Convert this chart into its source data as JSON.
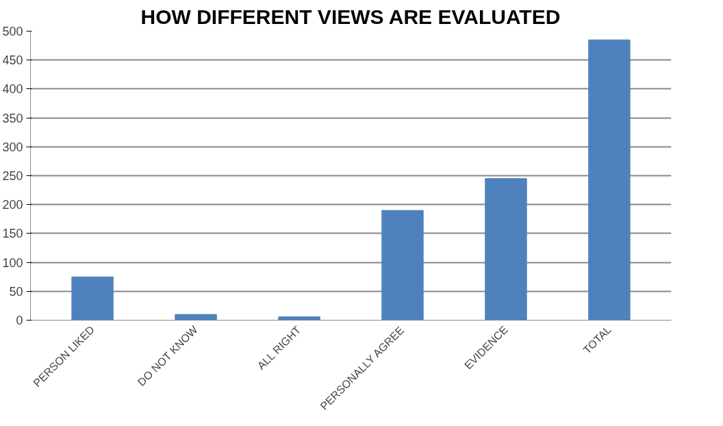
{
  "chart_data": {
    "type": "bar",
    "title": "HOW DIFFERENT VIEWS ARE EVALUATED",
    "categories": [
      "PERSON LIKED",
      "DO NOT KNOW",
      "ALL RIGHT",
      "PERSONALLY AGREE",
      "EVIDENCE",
      "TOTAL"
    ],
    "values": [
      75,
      10,
      6,
      190,
      245,
      485
    ],
    "color": "#4f81bd",
    "ylim": [
      0,
      500
    ],
    "yticks": [
      0,
      50,
      100,
      150,
      200,
      250,
      300,
      350,
      400,
      450,
      500
    ],
    "grid": "y"
  }
}
